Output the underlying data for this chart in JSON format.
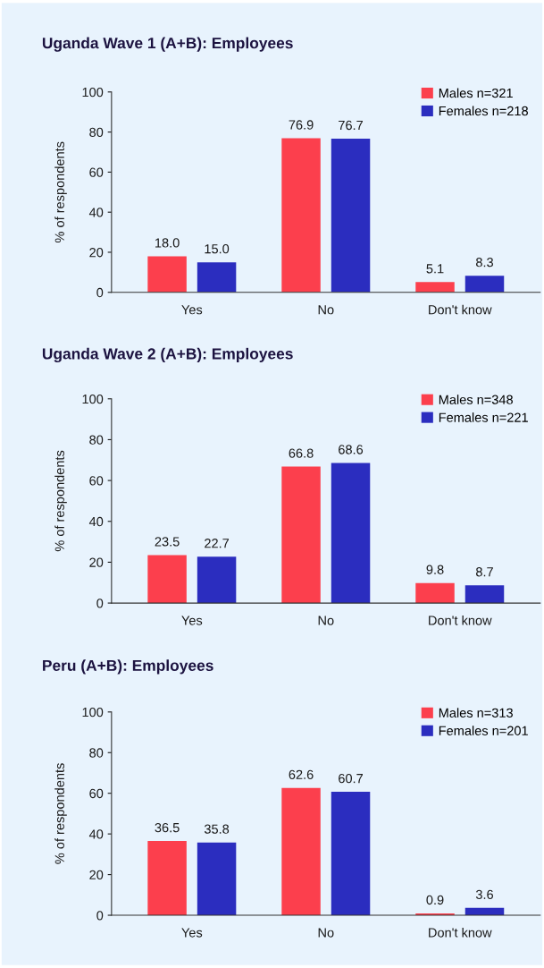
{
  "chart_data": [
    {
      "type": "bar",
      "title": "Uganda Wave 1 (A+B): Employees",
      "ylabel": "% of respondents",
      "categories": [
        "Yes",
        "No",
        "Don't know"
      ],
      "series": [
        {
          "name": "Males n=321",
          "color": "#fc3f4d",
          "values": [
            18.0,
            76.9,
            5.1
          ],
          "value_labels": [
            "18.0",
            "76.9",
            "5.1"
          ]
        },
        {
          "name": "Females n=218",
          "color": "#2b2dbf",
          "values": [
            15.0,
            76.7,
            8.3
          ],
          "value_labels": [
            "15.0",
            "76.7",
            "8.3"
          ]
        }
      ],
      "ylim": [
        0,
        100
      ],
      "yticks": [
        0,
        20,
        40,
        60,
        80,
        100
      ],
      "legend": "top right",
      "grid": false
    },
    {
      "type": "bar",
      "title": "Uganda Wave 2 (A+B): Employees",
      "ylabel": "% of respondents",
      "categories": [
        "Yes",
        "No",
        "Don't know"
      ],
      "series": [
        {
          "name": "Males n=348",
          "color": "#fc3f4d",
          "values": [
            23.5,
            66.8,
            9.8
          ],
          "value_labels": [
            "23.5",
            "66.8",
            "9.8"
          ]
        },
        {
          "name": "Females n=221",
          "color": "#2b2dbf",
          "values": [
            22.7,
            68.6,
            8.7
          ],
          "value_labels": [
            "22.7",
            "68.6",
            "8.7"
          ]
        }
      ],
      "ylim": [
        0,
        100
      ],
      "yticks": [
        0,
        20,
        40,
        60,
        80,
        100
      ],
      "legend": "top right",
      "grid": false
    },
    {
      "type": "bar",
      "title": "Peru (A+B): Employees",
      "ylabel": "% of respondents",
      "categories": [
        "Yes",
        "No",
        "Don't know"
      ],
      "series": [
        {
          "name": "Males n=313",
          "color": "#fc3f4d",
          "values": [
            36.5,
            62.6,
            0.9
          ],
          "value_labels": [
            "36.5",
            "62.6",
            "0.9"
          ]
        },
        {
          "name": "Females n=201",
          "color": "#2b2dbf",
          "values": [
            35.8,
            60.7,
            3.6
          ],
          "value_labels": [
            "35.8",
            "60.7",
            "3.6"
          ]
        }
      ],
      "ylim": [
        0,
        100
      ],
      "yticks": [
        0,
        20,
        40,
        60,
        80,
        100
      ],
      "legend": "top right",
      "grid": false
    }
  ]
}
